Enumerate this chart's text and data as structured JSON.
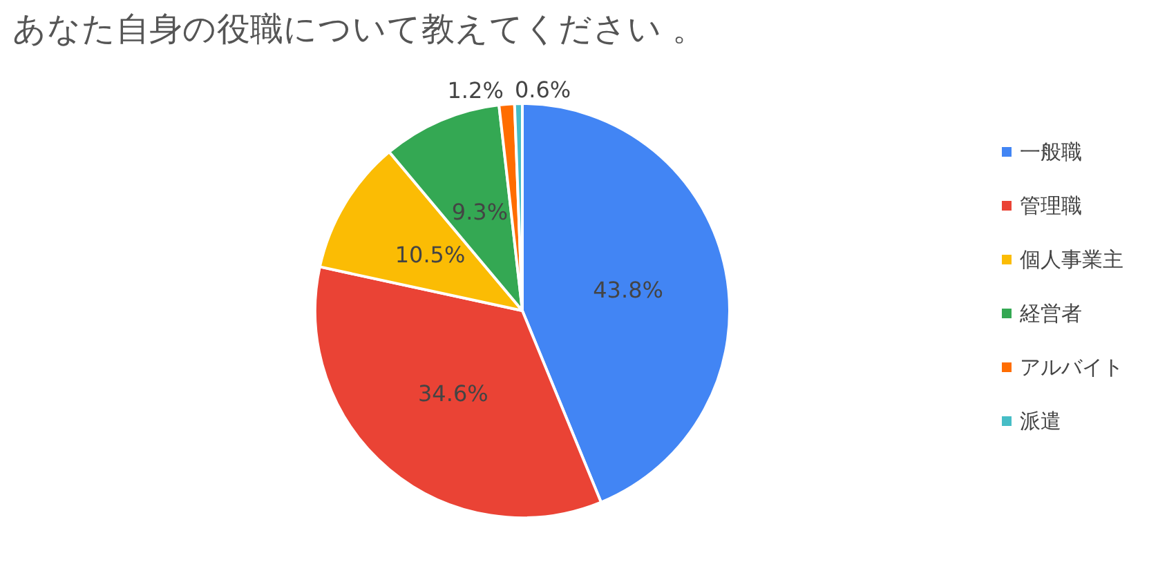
{
  "chart_data": {
    "type": "pie",
    "title": "あなた自身の役職について教えてください 。",
    "categories": [
      "一般職",
      "管理職",
      "個人事業主",
      "経営者",
      "アルバイト",
      "派遣"
    ],
    "values": [
      43.8,
      34.6,
      10.5,
      9.3,
      1.2,
      0.6
    ],
    "colors": [
      "#4285f4",
      "#ea4335",
      "#fbbc04",
      "#34a853",
      "#ff6d01",
      "#46bdc6"
    ],
    "value_labels": [
      "43.8%",
      "34.6%",
      "10.5%",
      "9.3%",
      "1.2%",
      "0.6%"
    ],
    "legend": "right"
  }
}
